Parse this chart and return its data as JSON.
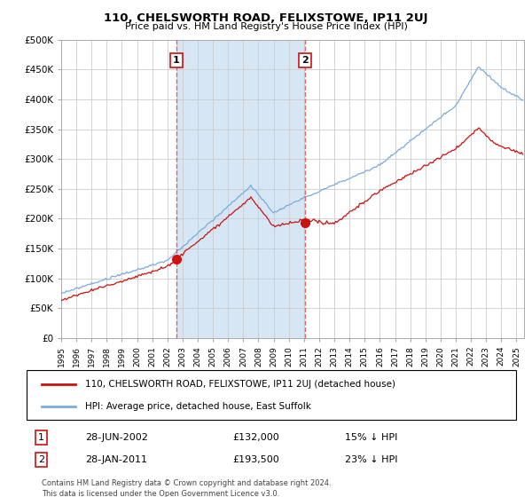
{
  "title": "110, CHELSWORTH ROAD, FELIXSTOWE, IP11 2UJ",
  "subtitle": "Price paid vs. HM Land Registry's House Price Index (HPI)",
  "purchase_year1": 2002.58,
  "purchase_year2": 2011.08,
  "purchase_price1": 132000,
  "purchase_price2": 193500,
  "legend_line1": "110, CHELSWORTH ROAD, FELIXSTOWE, IP11 2UJ (detached house)",
  "legend_line2": "HPI: Average price, detached house, East Suffolk",
  "annotation1_label": "1",
  "annotation1_date": "28-JUN-2002",
  "annotation1_price": "£132,000",
  "annotation1_note": "15% ↓ HPI",
  "annotation2_label": "2",
  "annotation2_date": "28-JAN-2011",
  "annotation2_price": "£193,500",
  "annotation2_note": "23% ↓ HPI",
  "footer1": "Contains HM Land Registry data © Crown copyright and database right 2024.",
  "footer2": "This data is licensed under the Open Government Licence v3.0.",
  "hpi_color": "#7aabde",
  "price_color": "#cc1111",
  "vline_color": "#dd4444",
  "marker_box_color": "#cc1111",
  "bg_color": "#ddeeff",
  "shade_color": "#c5dcf0",
  "ylim_max": 500000,
  "yticks": [
    0,
    50000,
    100000,
    150000,
    200000,
    250000,
    300000,
    350000,
    400000,
    450000,
    500000
  ],
  "xlim_min": 1995,
  "xlim_max": 2025.5
}
